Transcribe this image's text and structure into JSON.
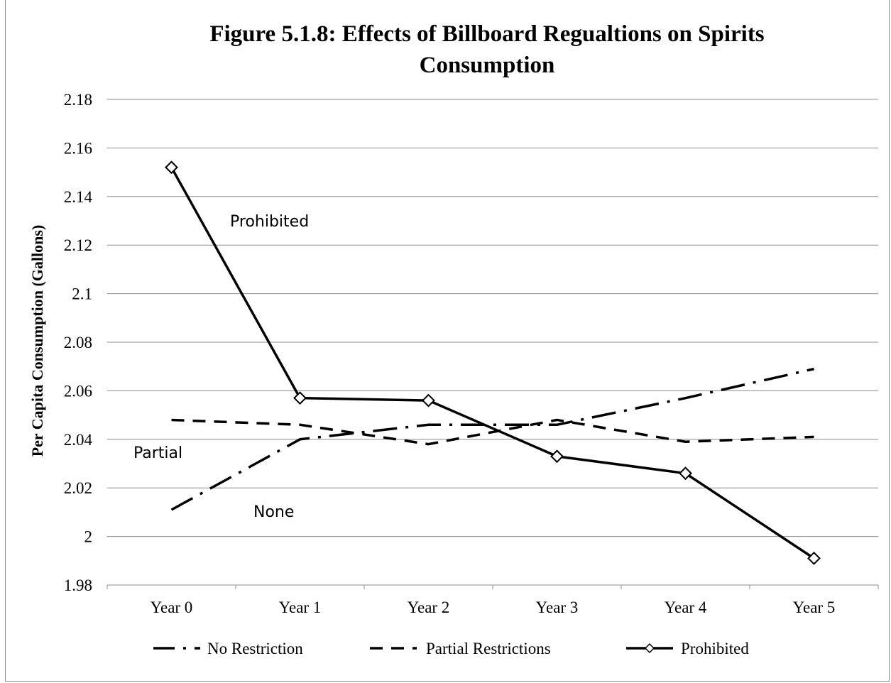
{
  "chart_data": {
    "type": "line",
    "title": [
      "Figure 5.1.8: Effects of Billboard Regualtions on Spirits",
      "Consumption"
    ],
    "ylabel": "Per Capita Consumption (Gallons)",
    "xlabel": "",
    "categories": [
      "Year 0",
      "Year 1",
      "Year 2",
      "Year 3",
      "Year 4",
      "Year 5"
    ],
    "ylim": [
      1.98,
      2.18
    ],
    "yticks": [
      "1.98",
      "2",
      "2.02",
      "2.04",
      "2.06",
      "2.08",
      "2.1",
      "2.12",
      "2.14",
      "2.16",
      "2.18"
    ],
    "grid": true,
    "legend_position": "bottom",
    "series": [
      {
        "name": "No Restriction",
        "values": [
          2.011,
          2.04,
          2.046,
          2.046,
          2.057,
          2.069
        ],
        "style": "dash-dot",
        "color": "#000000"
      },
      {
        "name": "Partial Restrictions",
        "values": [
          2.048,
          2.046,
          2.038,
          2.048,
          2.039,
          2.041
        ],
        "style": "dashed",
        "color": "#000000"
      },
      {
        "name": "Prohibited",
        "values": [
          2.152,
          2.057,
          2.056,
          2.033,
          2.026,
          1.991
        ],
        "style": "solid-diamond",
        "color": "#000000"
      }
    ],
    "annotations": [
      {
        "text": "Prohibited"
      },
      {
        "text": "Partial"
      },
      {
        "text": "None"
      }
    ]
  }
}
